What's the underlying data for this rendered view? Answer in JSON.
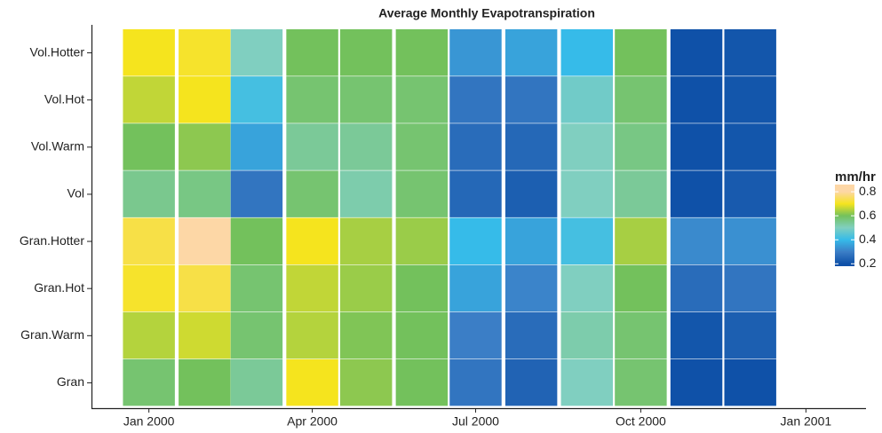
{
  "chart_data": {
    "type": "heatmap",
    "title": "Average Monthly Evapotranspiration",
    "x": [
      "2000-01",
      "2000-02",
      "2000-03",
      "2000-04",
      "2000-05",
      "2000-06",
      "2000-07",
      "2000-08",
      "2000-09",
      "2000-10",
      "2000-11",
      "2000-12"
    ],
    "xlim": [
      "1999-12",
      "2001-02"
    ],
    "xticks": [
      {
        "value": "2000-01",
        "label": "Jan 2000"
      },
      {
        "value": "2000-04",
        "label": "Apr 2000"
      },
      {
        "value": "2000-07",
        "label": "Jul 2000"
      },
      {
        "value": "2000-10",
        "label": "Oct 2000"
      },
      {
        "value": "2001-01",
        "label": "Jan 2001"
      }
    ],
    "y": [
      "Vol.Hotter",
      "Vol.Hot",
      "Vol.Warm",
      "Vol",
      "Gran.Hotter",
      "Gran.Hot",
      "Gran.Warm",
      "Gran"
    ],
    "z": [
      [
        0.7,
        0.71,
        0.5,
        0.6,
        0.6,
        0.6,
        0.34,
        0.36,
        0.4,
        0.6,
        0.2,
        0.21
      ],
      [
        0.66,
        0.7,
        0.42,
        0.58,
        0.58,
        0.58,
        0.28,
        0.28,
        0.48,
        0.58,
        0.2,
        0.21
      ],
      [
        0.6,
        0.62,
        0.36,
        0.54,
        0.54,
        0.58,
        0.26,
        0.25,
        0.5,
        0.56,
        0.2,
        0.21
      ],
      [
        0.55,
        0.56,
        0.28,
        0.58,
        0.52,
        0.58,
        0.25,
        0.23,
        0.5,
        0.54,
        0.2,
        0.22
      ],
      [
        0.73,
        0.8,
        0.6,
        0.7,
        0.64,
        0.63,
        0.4,
        0.36,
        0.42,
        0.64,
        0.32,
        0.33
      ],
      [
        0.71,
        0.73,
        0.58,
        0.66,
        0.63,
        0.6,
        0.36,
        0.31,
        0.5,
        0.6,
        0.26,
        0.28
      ],
      [
        0.65,
        0.67,
        0.58,
        0.65,
        0.61,
        0.6,
        0.3,
        0.26,
        0.52,
        0.58,
        0.21,
        0.23
      ],
      [
        0.58,
        0.6,
        0.54,
        0.7,
        0.62,
        0.6,
        0.28,
        0.24,
        0.5,
        0.58,
        0.2,
        0.2
      ]
    ],
    "colorscale": [
      [
        0.2,
        "#0f51a8"
      ],
      [
        0.3,
        "#3b7ec6"
      ],
      [
        0.4,
        "#36bbe9"
      ],
      [
        0.5,
        "#80cfc0"
      ],
      [
        0.6,
        "#73c15c"
      ],
      [
        0.7,
        "#f5e41e"
      ],
      [
        0.8,
        "#fdd7a6"
      ]
    ],
    "legend_title": "mm/hr",
    "colorbar_lim": [
      0.18,
      0.86
    ],
    "colorbar_ticks": [
      0.2,
      0.4,
      0.6,
      0.8
    ]
  }
}
